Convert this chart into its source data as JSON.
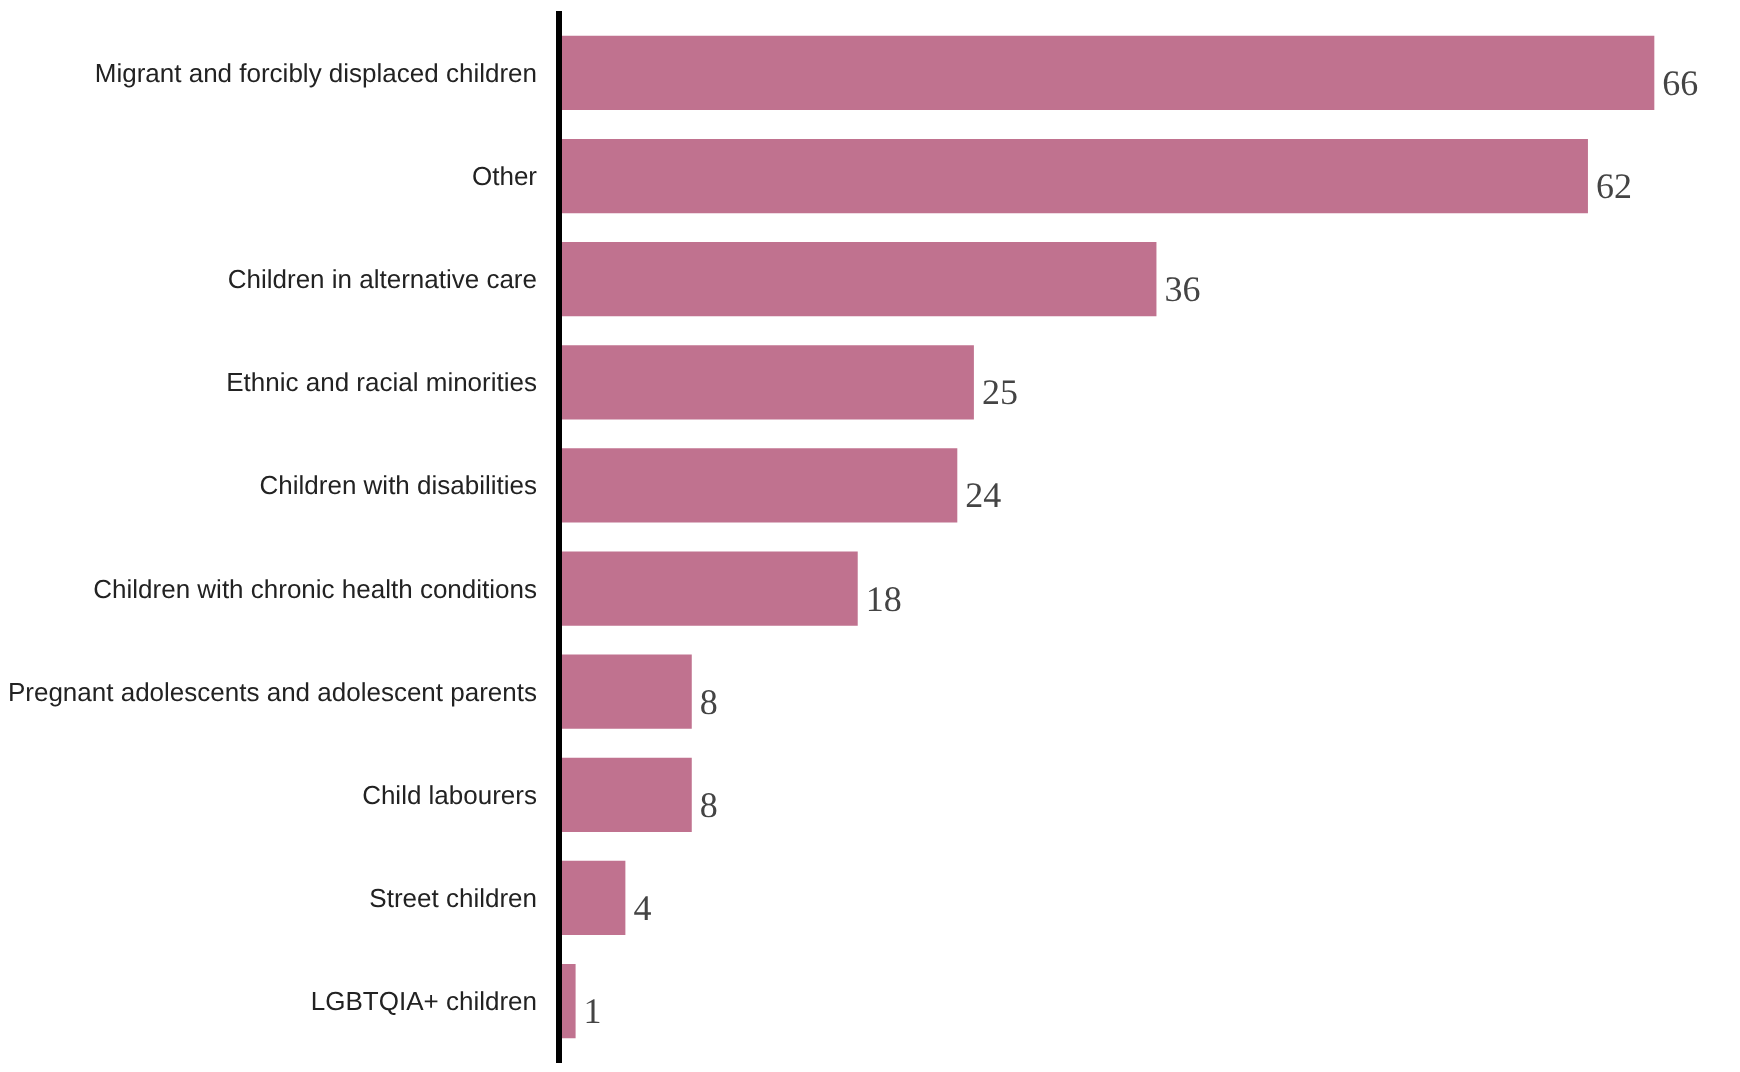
{
  "chart_data": {
    "type": "bar",
    "orientation": "horizontal",
    "data_labels": true,
    "color": "#c0728f",
    "categories": [
      "Migrant and forcibly displaced children",
      "Other",
      "Children in alternative care",
      "Ethnic and racial minorities",
      "Children with disabilities",
      "Children with chronic health conditions",
      "Pregnant adolescents and adolescent parents",
      "Child labourers",
      "Street children",
      "LGBTQIA+ children"
    ],
    "values": [
      66,
      62,
      36,
      25,
      24,
      18,
      8,
      8,
      4,
      1
    ]
  }
}
